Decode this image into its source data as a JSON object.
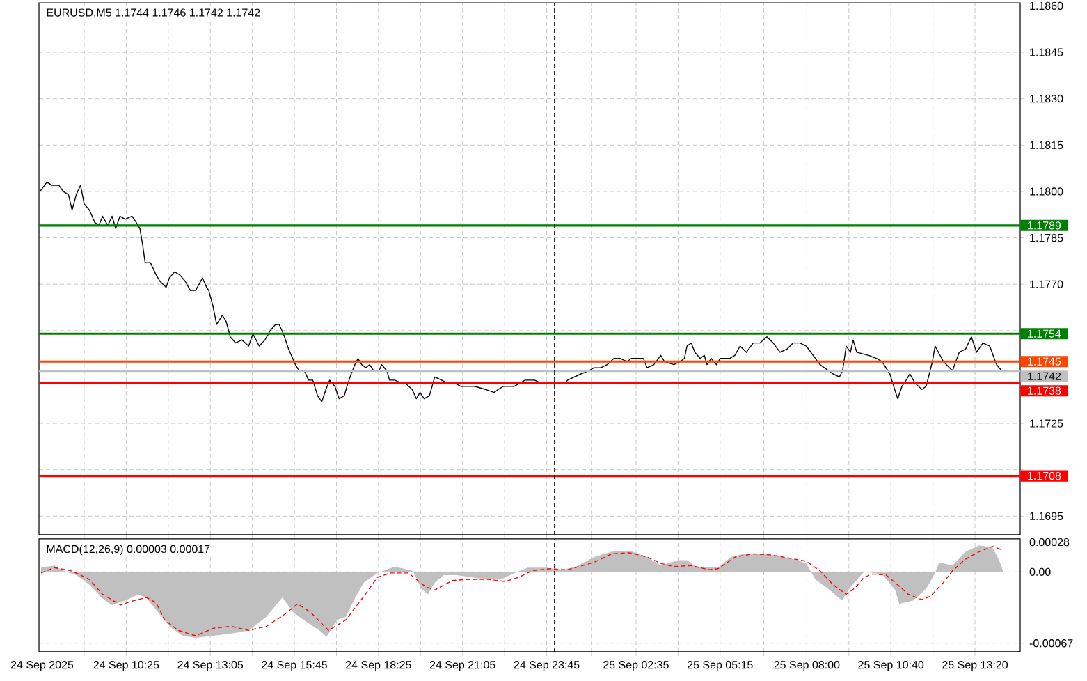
{
  "chart_data": [
    {
      "type": "line",
      "title": "EURUSD,M5  1.1744 1.1746 1.1742 1.1742",
      "series": [
        {
          "color": "#000000",
          "x": [
            "2025-09-24T07:41",
            "2025-09-24T07:54",
            "2025-09-24T08:04",
            "2025-09-24T08:17",
            "2025-09-24T08:25",
            "2025-09-24T08:35",
            "2025-09-24T08:42",
            "2025-09-24T08:50",
            "2025-09-24T08:58",
            "2025-09-24T09:05",
            "2025-09-24T09:15",
            "2025-09-24T09:25",
            "2025-09-24T09:33",
            "2025-09-24T09:40",
            "2025-09-24T09:50",
            "2025-09-24T09:58",
            "2025-09-24T10:05",
            "2025-09-24T10:13",
            "2025-09-24T10:23",
            "2025-09-24T10:36",
            "2025-09-24T10:44",
            "2025-09-24T10:51",
            "2025-09-24T10:56",
            "2025-09-24T11:01",
            "2025-09-24T11:11",
            "2025-09-24T11:22",
            "2025-09-24T11:29",
            "2025-09-24T11:41",
            "2025-09-24T11:47",
            "2025-09-24T11:57",
            "2025-09-24T12:07",
            "2025-09-24T12:17",
            "2025-09-24T12:27",
            "2025-09-24T12:37",
            "2025-09-24T12:50",
            "2025-09-24T12:58",
            "2025-09-24T13:02",
            "2025-09-24T13:10",
            "2025-09-24T13:17",
            "2025-09-24T13:28",
            "2025-09-24T13:35",
            "2025-09-24T13:43",
            "2025-09-24T13:53",
            "2025-09-24T14:05",
            "2025-09-24T14:18",
            "2025-09-24T14:26",
            "2025-09-24T14:38",
            "2025-09-24T14:49",
            "2025-09-24T14:59",
            "2025-09-24T15:09",
            "2025-09-24T15:16",
            "2025-09-24T15:24",
            "2025-09-24T15:34",
            "2025-09-24T15:47",
            "2025-09-24T15:54",
            "2025-09-24T16:04",
            "2025-09-24T16:12",
            "2025-09-24T16:20",
            "2025-09-24T16:29",
            "2025-09-24T16:37",
            "2025-09-24T16:45",
            "2025-09-24T16:52",
            "2025-09-24T17:02",
            "2025-09-24T17:10",
            "2025-09-24T17:20",
            "2025-09-24T17:25",
            "2025-09-24T17:33",
            "2025-09-24T17:40",
            "2025-09-24T17:46",
            "2025-09-24T17:53",
            "2025-09-24T18:01",
            "2025-09-24T18:08",
            "2025-09-24T18:16",
            "2025-09-24T18:26",
            "2025-09-24T18:31",
            "2025-09-24T18:41",
            "2025-09-24T18:46",
            "2025-09-24T18:56",
            "2025-09-24T19:09",
            "2025-09-24T19:16",
            "2025-09-24T19:29",
            "2025-09-24T19:37",
            "2025-09-24T19:44",
            "2025-09-24T19:52",
            "2025-09-24T20:02",
            "2025-09-24T20:12",
            "2025-09-24T20:25",
            "2025-09-24T20:37",
            "2025-09-24T20:50",
            "2025-09-24T21:02",
            "2025-09-24T21:15",
            "2025-09-24T21:28",
            "2025-09-24T21:48",
            "2025-09-24T22:05",
            "2025-09-24T22:13",
            "2025-09-24T22:23",
            "2025-09-24T22:43",
            "2025-09-24T23:04",
            "2025-09-24T23:22",
            "2025-09-24T23:34",
            "2025-09-24T23:54",
            "2025-09-25T00:07",
            "2025-09-25T00:20",
            "2025-09-25T00:25",
            "2025-09-25T00:50",
            "2025-09-25T01:05",
            "2025-09-25T01:15",
            "2025-09-25T01:28",
            "2025-09-25T01:40",
            "2025-09-25T01:53",
            "2025-09-25T02:05",
            "2025-09-25T02:18",
            "2025-09-25T02:26",
            "2025-09-25T02:36",
            "2025-09-25T02:49",
            "2025-09-25T02:56",
            "2025-09-25T03:09",
            "2025-09-25T03:22",
            "2025-09-25T03:29",
            "2025-09-25T03:47",
            "2025-09-25T03:59",
            "2025-09-25T04:07",
            "2025-09-25T04:12",
            "2025-09-25T04:20",
            "2025-09-25T04:27",
            "2025-09-25T04:37",
            "2025-09-25T04:45",
            "2025-09-25T04:50",
            "2025-09-25T04:58",
            "2025-09-25T05:08",
            "2025-09-25T05:15",
            "2025-09-25T05:23",
            "2025-09-25T05:33",
            "2025-09-25T05:43",
            "2025-09-25T05:53",
            "2025-09-25T06:05",
            "2025-09-25T06:18",
            "2025-09-25T06:31",
            "2025-09-25T06:44",
            "2025-09-25T06:56",
            "2025-09-25T07:09",
            "2025-09-25T07:22",
            "2025-09-25T07:34",
            "2025-09-25T07:47",
            "2025-09-25T07:59",
            "2025-09-25T08:25",
            "2025-09-25T08:50",
            "2025-09-25T09:02",
            "2025-09-25T09:08",
            "2025-09-25T09:15",
            "2025-09-25T09:23",
            "2025-09-25T09:28",
            "2025-09-25T09:35",
            "2025-09-25T09:58",
            "2025-09-25T10:13",
            "2025-09-25T10:23",
            "2025-09-25T10:38",
            "2025-09-25T10:49",
            "2025-09-25T10:53",
            "2025-09-25T11:01",
            "2025-09-25T11:09",
            "2025-09-25T11:16",
            "2025-09-25T11:26",
            "2025-09-25T11:39",
            "2025-09-25T11:47",
            "2025-09-25T11:59",
            "2025-09-25T12:04",
            "2025-09-25T12:20",
            "2025-09-25T12:37",
            "2025-09-25T12:50",
            "2025-09-25T13:02",
            "2025-09-25T13:13",
            "2025-09-25T13:23",
            "2025-09-25T13:35",
            "2025-09-25T13:48",
            "2025-09-25T14:01",
            "2025-09-25T14:11"
          ],
          "values": [
            1.18,
            1.1803,
            1.1802,
            1.1802,
            1.18,
            1.1799,
            1.1794,
            1.1799,
            1.1802,
            1.1796,
            1.1794,
            1.179,
            1.1789,
            1.1792,
            1.1789,
            1.1792,
            1.1788,
            1.1792,
            1.1791,
            1.1792,
            1.179,
            1.1788,
            1.1783,
            1.1777,
            1.1777,
            1.1773,
            1.1771,
            1.1769,
            1.1772,
            1.1774,
            1.1773,
            1.1771,
            1.1768,
            1.1768,
            1.1772,
            1.1769,
            1.1768,
            1.1763,
            1.1757,
            1.176,
            1.1758,
            1.1753,
            1.1751,
            1.1752,
            1.175,
            1.1754,
            1.175,
            1.1752,
            1.1755,
            1.1757,
            1.1757,
            1.1754,
            1.1749,
            1.1744,
            1.1742,
            1.1742,
            1.1739,
            1.1739,
            1.1734,
            1.1732,
            1.1736,
            1.1739,
            1.1737,
            1.1733,
            1.1734,
            1.1737,
            1.1741,
            1.1744,
            1.1746,
            1.1744,
            1.1743,
            1.1744,
            1.1742,
            1.1742,
            1.1744,
            1.1742,
            1.1739,
            1.1739,
            1.1738,
            1.1738,
            1.1736,
            1.1733,
            1.1735,
            1.1733,
            1.1734,
            1.174,
            1.1739,
            1.1738,
            1.1738,
            1.1737,
            1.1737,
            1.1737,
            1.1736,
            1.1735,
            1.1736,
            1.1737,
            1.1737,
            1.1739,
            1.1739,
            1.1738,
            1.1738,
            1.1738,
            1.1738,
            1.1739,
            1.1741,
            1.1742,
            1.1743,
            1.1743,
            1.1744,
            1.1746,
            1.1746,
            1.1745,
            1.1746,
            1.1746,
            1.1746,
            1.1743,
            1.1744,
            1.1747,
            1.1745,
            1.1744,
            1.1745,
            1.1746,
            1.175,
            1.1751,
            1.1748,
            1.1746,
            1.1747,
            1.1744,
            1.1746,
            1.1744,
            1.1746,
            1.1746,
            1.1746,
            1.1747,
            1.175,
            1.1748,
            1.1751,
            1.1751,
            1.1753,
            1.1751,
            1.1748,
            1.1749,
            1.1751,
            1.1751,
            1.175,
            1.1744,
            1.1741,
            1.174,
            1.1742,
            1.175,
            1.1748,
            1.1752,
            1.1748,
            1.1747,
            1.1746,
            1.1745,
            1.1741,
            1.1735,
            1.1733,
            1.1737,
            1.1739,
            1.1741,
            1.1738,
            1.1736,
            1.1737,
            1.1745,
            1.175,
            1.1745,
            1.1742,
            1.1748,
            1.1749,
            1.1753,
            1.1748,
            1.1751,
            1.175,
            1.1744,
            1.1742
          ]
        }
      ],
      "xlim": [
        "2025-09-24T07:39",
        "2025-09-25T14:46"
      ],
      "ylim": [
        1.1689,
        1.1861
      ],
      "xticks": [
        {
          "value": "2025-09-24T07:45",
          "label": null
        },
        {
          "value": "2025-09-24T09:05",
          "label": null
        },
        {
          "value": "2025-09-24T10:25",
          "label": null
        },
        {
          "value": "2025-09-24T11:45",
          "label": null
        },
        {
          "value": "2025-09-24T13:05",
          "label": null
        },
        {
          "value": "2025-09-24T14:25",
          "label": null
        },
        {
          "value": "2025-09-24T15:45",
          "label": null
        },
        {
          "value": "2025-09-24T17:05",
          "label": null
        },
        {
          "value": "2025-09-24T18:25",
          "label": null
        },
        {
          "value": "2025-09-24T19:45",
          "label": null
        },
        {
          "value": "2025-09-24T21:05",
          "label": null
        },
        {
          "value": "2025-09-24T22:25",
          "label": null
        },
        {
          "value": "2025-09-24T23:45",
          "label": null
        },
        {
          "value": "2025-09-25T01:10",
          "label": null
        },
        {
          "value": "2025-09-25T02:35",
          "label": null
        },
        {
          "value": "2025-09-25T03:55",
          "label": null
        },
        {
          "value": "2025-09-25T05:15",
          "label": null
        },
        {
          "value": "2025-09-25T06:38",
          "label": null
        },
        {
          "value": "2025-09-25T08:00",
          "label": null
        },
        {
          "value": "2025-09-25T09:20",
          "label": null
        },
        {
          "value": "2025-09-25T10:40",
          "label": null
        },
        {
          "value": "2025-09-25T12:00",
          "label": null
        },
        {
          "value": "2025-09-25T13:20",
          "label": null
        }
      ],
      "yticks": [
        {
          "value": 1.186,
          "label": "1.1860"
        },
        {
          "value": 1.1845,
          "label": "1.1845"
        },
        {
          "value": 1.183,
          "label": "1.1830"
        },
        {
          "value": 1.1815,
          "label": "1.1815"
        },
        {
          "value": 1.18,
          "label": "1.1800"
        },
        {
          "value": 1.1785,
          "label": "1.1785"
        },
        {
          "value": 1.177,
          "label": "1.1770"
        },
        {
          "value": 1.1755,
          "label": null
        },
        {
          "value": 1.174,
          "label": null
        },
        {
          "value": 1.1725,
          "label": "1.1725"
        },
        {
          "value": 1.171,
          "label": null
        },
        {
          "value": 1.1695,
          "label": "1.1695"
        }
      ],
      "tick_labels": "y",
      "grid": true,
      "ref_lines": [
        {
          "axis": "y",
          "value": 1.1789,
          "label": "1.1789",
          "color": "#008000"
        },
        {
          "axis": "y",
          "value": 1.1754,
          "label": "1.1754",
          "color": "#008000"
        },
        {
          "axis": "y",
          "value": 1.1745,
          "label": "1.1745",
          "color": "#ff4500"
        },
        {
          "axis": "y",
          "value": 1.1742,
          "label": "1.1742",
          "color": "#c0c0c0"
        },
        {
          "axis": "y",
          "value": 1.1738,
          "label": "1.1738",
          "color": "#ff0000"
        },
        {
          "axis": "y",
          "value": 1.1708,
          "label": "1.1708",
          "color": "#ff0000"
        },
        {
          "axis": "x",
          "value": "2025-09-25T00:00",
          "color": "#000000",
          "line_style": "dashed"
        }
      ]
    },
    {
      "type": "line",
      "title": "MACD(12,26,9) 0.00003 0.00017",
      "series": [
        {
          "type": "area",
          "color": "#c0c0c0",
          "x": [
            "2025-09-24T07:43",
            "2025-09-24T08:08",
            "2025-09-24T08:25",
            "2025-09-24T08:50",
            "2025-09-24T09:15",
            "2025-09-24T09:40",
            "2025-09-24T09:57",
            "2025-09-24T10:23",
            "2025-09-24T10:48",
            "2025-09-24T11:04",
            "2025-09-24T11:26",
            "2025-09-24T11:47",
            "2025-09-24T12:12",
            "2025-09-24T12:37",
            "2025-09-24T13:11",
            "2025-09-24T13:44",
            "2025-09-24T14:18",
            "2025-09-24T14:52",
            "2025-09-24T15:22",
            "2025-09-24T15:43",
            "2025-09-24T16:08",
            "2025-09-24T16:33",
            "2025-09-24T16:46",
            "2025-09-24T17:07",
            "2025-09-24T17:23",
            "2025-09-24T17:40",
            "2025-09-24T17:57",
            "2025-09-24T18:23",
            "2025-09-24T18:56",
            "2025-09-24T19:30",
            "2025-09-24T19:47",
            "2025-09-24T19:59",
            "2025-09-24T20:12",
            "2025-09-24T20:29",
            "2025-09-24T20:54",
            "2025-09-24T21:36",
            "2025-09-24T22:18",
            "2025-09-24T22:44",
            "2025-09-24T23:09",
            "2025-09-24T23:43",
            "2025-09-25T00:16",
            "2025-09-25T00:41",
            "2025-09-25T01:15",
            "2025-09-25T01:49",
            "2025-09-25T02:23",
            "2025-09-25T02:56",
            "2025-09-25T03:22",
            "2025-09-25T03:55",
            "2025-09-25T04:12",
            "2025-09-25T04:29",
            "2025-09-25T05:11",
            "2025-09-25T05:36",
            "2025-09-25T06:01",
            "2025-09-25T06:35",
            "2025-09-25T07:09",
            "2025-09-25T07:43",
            "2025-09-25T07:59",
            "2025-09-25T08:16",
            "2025-09-25T08:41",
            "2025-09-25T09:07",
            "2025-09-25T09:23",
            "2025-09-25T09:49",
            "2025-09-25T10:23",
            "2025-09-25T10:48",
            "2025-09-25T10:56",
            "2025-09-25T11:22",
            "2025-09-25T11:47",
            "2025-09-25T12:04",
            "2025-09-25T12:12",
            "2025-09-25T12:37",
            "2025-09-25T13:02",
            "2025-09-25T13:28",
            "2025-09-25T13:53",
            "2025-09-25T14:05",
            "2025-09-25T14:14"
          ],
          "values": [
            4e-05,
            6e-05,
            1e-05,
            -3e-05,
            -0.00012,
            -0.00025,
            -0.00031,
            -0.00027,
            -0.00021,
            -0.00025,
            -0.00038,
            -0.00051,
            -0.0006,
            -0.00062,
            -0.0006,
            -0.00058,
            -0.00055,
            -0.00042,
            -0.00024,
            -0.00038,
            -0.00047,
            -0.00055,
            -0.00061,
            -0.00045,
            -0.00042,
            -0.00025,
            -0.0001,
            -1e-05,
            5e-05,
            1e-05,
            -0.00016,
            -0.00021,
            -0.0001,
            -3e-05,
            -3e-05,
            -6e-05,
            -7e-05,
            -1e-05,
            4e-05,
            4e-05,
            2e-05,
            5e-05,
            0.00014,
            0.00019,
            0.0002,
            0.00014,
            6e-05,
            0.00011,
            0.00011,
            5e-05,
            4e-05,
            0.00014,
            0.00017,
            0.00017,
            0.00015,
            0.00011,
            8e-05,
            -7e-05,
            -0.00016,
            -0.00027,
            -0.00014,
            0.0,
            -2e-05,
            -0.00017,
            -0.0003,
            -0.00027,
            -0.00016,
            -1e-05,
            9e-05,
            6e-05,
            0.00019,
            0.00025,
            0.00023,
            0.00012,
            0
          ]
        },
        {
          "type": "line",
          "color": "#ff0000",
          "line_style": "dashed",
          "x": [
            "2025-09-24T07:43",
            "2025-09-24T08:08",
            "2025-09-24T08:41",
            "2025-09-24T09:15",
            "2025-09-24T09:40",
            "2025-09-24T10:14",
            "2025-09-24T10:39",
            "2025-09-24T11:04",
            "2025-09-24T11:22",
            "2025-09-24T11:38",
            "2025-09-24T12:04",
            "2025-09-24T12:37",
            "2025-09-24T13:11",
            "2025-09-24T13:44",
            "2025-09-24T14:18",
            "2025-09-24T14:52",
            "2025-09-24T15:26",
            "2025-09-24T15:51",
            "2025-09-24T16:16",
            "2025-09-24T16:50",
            "2025-09-24T17:23",
            "2025-09-24T17:57",
            "2025-09-24T18:23",
            "2025-09-24T18:48",
            "2025-09-24T19:22",
            "2025-09-24T19:55",
            "2025-09-24T20:12",
            "2025-09-24T20:46",
            "2025-09-24T21:19",
            "2025-09-24T21:53",
            "2025-09-24T22:26",
            "2025-09-24T22:52",
            "2025-09-24T23:17",
            "2025-09-24T23:51",
            "2025-09-25T00:16",
            "2025-09-25T00:25",
            "2025-09-25T01:15",
            "2025-09-25T01:49",
            "2025-09-25T02:23",
            "2025-09-25T02:56",
            "2025-09-25T03:22",
            "2025-09-25T03:47",
            "2025-09-25T04:20",
            "2025-09-25T04:54",
            "2025-09-25T05:11",
            "2025-09-25T05:44",
            "2025-09-25T06:18",
            "2025-09-25T06:52",
            "2025-09-25T07:26",
            "2025-09-25T07:59",
            "2025-09-25T08:25",
            "2025-09-25T08:50",
            "2025-09-25T09:15",
            "2025-09-25T09:32",
            "2025-09-25T09:49",
            "2025-09-25T10:05",
            "2025-09-25T10:31",
            "2025-09-25T10:48",
            "2025-09-25T11:13",
            "2025-09-25T11:38",
            "2025-09-25T11:55",
            "2025-09-25T12:20",
            "2025-09-25T12:37",
            "2025-09-25T13:02",
            "2025-09-25T13:28",
            "2025-09-25T13:53",
            "2025-09-25T14:10"
          ],
          "values": [
            -1e-05,
            4e-05,
            1e-05,
            -7e-05,
            -0.00021,
            -0.00031,
            -0.00027,
            -0.00024,
            -0.00029,
            -0.00045,
            -0.00055,
            -0.0006,
            -0.00053,
            -0.00051,
            -0.00055,
            -0.00051,
            -0.0004,
            -0.0003,
            -0.00038,
            -0.00055,
            -0.00045,
            -0.00023,
            -5e-05,
            -1e-05,
            -1e-05,
            -0.00014,
            -0.00017,
            -8e-05,
            -7e-05,
            -7e-05,
            -9e-05,
            -5e-05,
            1e-05,
            3e-05,
            2e-05,
            2e-05,
            9e-05,
            0.00017,
            0.00018,
            0.00014,
            8e-05,
            5e-05,
            6e-05,
            2e-05,
            3e-05,
            0.00014,
            0.00017,
            0.00016,
            0.00013,
            0.0001,
            1e-05,
            -0.00012,
            -0.00021,
            -0.00015,
            -5e-05,
            -2e-05,
            -3e-05,
            -0.0001,
            -0.00021,
            -0.00026,
            -0.00023,
            -0.0001,
            1e-05,
            0.00012,
            0.00019,
            0.00024,
            0.00021
          ]
        }
      ],
      "xlim": [
        "2025-09-24T07:39",
        "2025-09-25T14:46"
      ],
      "ylim": [
        -0.00075,
        0.00031
      ],
      "xticks": [
        {
          "value": "2025-09-24T07:45",
          "label": "24 Sep 2025"
        },
        {
          "value": "2025-09-24T09:05",
          "label": null
        },
        {
          "value": "2025-09-24T10:25",
          "label": "24 Sep 10:25"
        },
        {
          "value": "2025-09-24T11:45",
          "label": null
        },
        {
          "value": "2025-09-24T13:05",
          "label": "24 Sep 13:05"
        },
        {
          "value": "2025-09-24T14:25",
          "label": null
        },
        {
          "value": "2025-09-24T15:45",
          "label": "24 Sep 15:45"
        },
        {
          "value": "2025-09-24T17:05",
          "label": null
        },
        {
          "value": "2025-09-24T18:25",
          "label": "24 Sep 18:25"
        },
        {
          "value": "2025-09-24T19:45",
          "label": null
        },
        {
          "value": "2025-09-24T21:05",
          "label": "24 Sep 21:05"
        },
        {
          "value": "2025-09-24T22:25",
          "label": null
        },
        {
          "value": "2025-09-24T23:45",
          "label": "24 Sep 23:45"
        },
        {
          "value": "2025-09-25T01:10",
          "label": null
        },
        {
          "value": "2025-09-25T02:35",
          "label": "25 Sep 02:35"
        },
        {
          "value": "2025-09-25T03:55",
          "label": null
        },
        {
          "value": "2025-09-25T05:15",
          "label": "25 Sep 05:15"
        },
        {
          "value": "2025-09-25T06:38",
          "label": null
        },
        {
          "value": "2025-09-25T08:00",
          "label": "25 Sep 08:00"
        },
        {
          "value": "2025-09-25T09:20",
          "label": null
        },
        {
          "value": "2025-09-25T10:40",
          "label": "25 Sep 10:40"
        },
        {
          "value": "2025-09-25T12:00",
          "label": null
        },
        {
          "value": "2025-09-25T13:20",
          "label": "25 Sep 13:20"
        }
      ],
      "yticks": [
        0.00028,
        {
          "value": 0,
          "label": "0.00"
        },
        -0.00067
      ],
      "grid": true,
      "ref_lines": [
        {
          "axis": "x",
          "value": "2025-09-25T00:00",
          "color": "#000000",
          "line_style": "dashed"
        }
      ]
    }
  ]
}
